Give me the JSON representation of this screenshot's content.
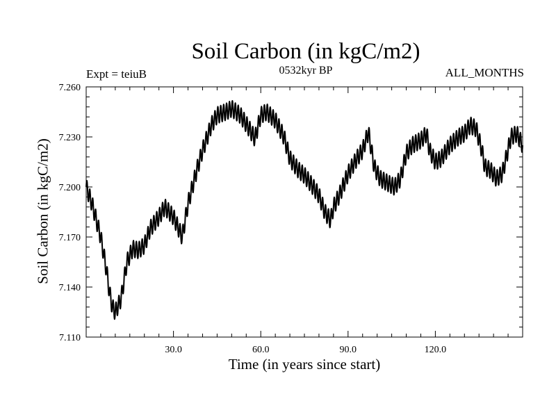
{
  "chart_data": {
    "type": "line",
    "title": "Soil Carbon (in kgC/m2)",
    "annotations": {
      "left": "Expt = teiuB",
      "center": "0532kyr BP",
      "right": "ALL_MONTHS"
    },
    "xlabel": "Time (in years since start)",
    "ylabel": "Soil Carbon (in kgC/m2)",
    "xlim": [
      0,
      150
    ],
    "ylim": [
      7.11,
      7.26
    ],
    "x_ticks": [
      30,
      60,
      90,
      120
    ],
    "x_tick_labels": [
      "30.0",
      "60.0",
      "90.0",
      "120.0"
    ],
    "y_ticks": [
      7.11,
      7.14,
      7.17,
      7.2,
      7.23,
      7.26
    ],
    "y_tick_labels": [
      "7.110",
      "7.140",
      "7.170",
      "7.200",
      "7.230",
      "7.260"
    ],
    "grid": false,
    "series": [
      {
        "color": "#000000",
        "seasonal_cycle_amplitude": 0.005,
        "samples_per_year": 12,
        "annual_mean": {
          "x": [
            0,
            2,
            5,
            7,
            8,
            9,
            10,
            12,
            14,
            16,
            18,
            20,
            22,
            25,
            27,
            30,
            33,
            35,
            38,
            40,
            43,
            45,
            48,
            50,
            53,
            56,
            58,
            60,
            62,
            65,
            68,
            70,
            73,
            75,
            78,
            80,
            82,
            84,
            85,
            87,
            90,
            93,
            95,
            97,
            99,
            101,
            103,
            106,
            108,
            110,
            112,
            115,
            117,
            118,
            120,
            122,
            125,
            128,
            130,
            132,
            134,
            136,
            137,
            139,
            141,
            143,
            144,
            146,
            148,
            150
          ],
          "y": [
            7.2,
            7.19,
            7.17,
            7.15,
            7.137,
            7.128,
            7.125,
            7.133,
            7.155,
            7.163,
            7.162,
            7.165,
            7.175,
            7.182,
            7.188,
            7.182,
            7.17,
            7.19,
            7.21,
            7.222,
            7.237,
            7.243,
            7.245,
            7.247,
            7.243,
            7.235,
            7.229,
            7.243,
            7.245,
            7.24,
            7.23,
            7.217,
            7.21,
            7.207,
            7.2,
            7.195,
            7.185,
            7.18,
            7.188,
            7.195,
            7.208,
            7.217,
            7.222,
            7.233,
            7.212,
            7.205,
            7.203,
            7.2,
            7.205,
            7.22,
            7.225,
            7.228,
            7.232,
            7.222,
            7.215,
            7.217,
            7.225,
            7.23,
            7.232,
            7.237,
            7.235,
            7.222,
            7.212,
            7.21,
            7.205,
            7.208,
            7.215,
            7.23,
            7.232,
            7.225
          ]
        }
      }
    ]
  }
}
